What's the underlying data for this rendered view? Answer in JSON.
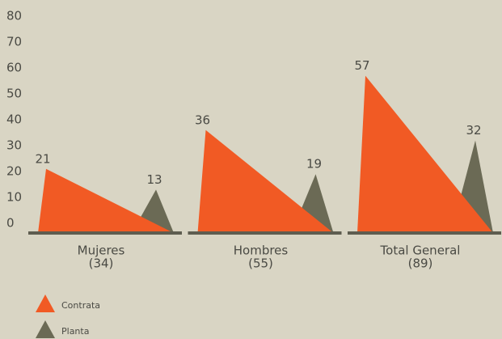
{
  "chart_data": {
    "type": "triangle",
    "categories": [
      "Mujeres",
      "Hombres",
      "Total General"
    ],
    "category_notes": [
      "(34)",
      "(55)",
      "(89)"
    ],
    "series": [
      {
        "name": "Contrata",
        "color": "#f15a24",
        "values": [
          21,
          36,
          57
        ]
      },
      {
        "name": "Planta",
        "color": "#6b6a55",
        "values": [
          13,
          19,
          32
        ]
      }
    ],
    "ylim": [
      0,
      80
    ],
    "yticks": [
      0,
      10,
      20,
      30,
      40,
      50,
      60,
      70,
      80
    ],
    "legend": "bottom-left"
  }
}
